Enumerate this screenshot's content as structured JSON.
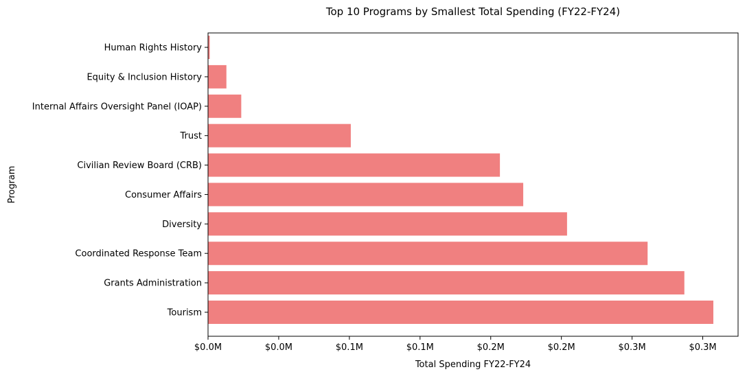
{
  "chart_data": {
    "type": "bar",
    "orientation": "horizontal",
    "title": "Top 10 Programs by Smallest Total Spending (FY22-FY24)",
    "xlabel": "Total Spending FY22-FY24",
    "ylabel": "Program",
    "categories": [
      "Human Rights History",
      "Equity & Inclusion History",
      "Internal Affairs Oversight Panel (IOAP)",
      "Trust",
      "Civilian Review Board (CRB)",
      "Consumer Affairs",
      "Diversity",
      "Coordinated Response Team",
      "Grants Administration",
      "Tourism"
    ],
    "values": [
      1200,
      13000,
      23500,
      101000,
      206500,
      223000,
      254000,
      311000,
      337000,
      357500
    ],
    "xlim": [
      0,
      375000
    ],
    "xticks": [
      0,
      50000,
      100000,
      150000,
      200000,
      250000,
      300000,
      350000
    ],
    "xtick_labels": [
      "$0.0M",
      "$0.0M",
      "$0.1M",
      "$0.1M",
      "$0.2M",
      "$0.2M",
      "$0.3M",
      "$0.3M"
    ],
    "bar_color": "#f08080",
    "grid": false,
    "legend": "none"
  }
}
